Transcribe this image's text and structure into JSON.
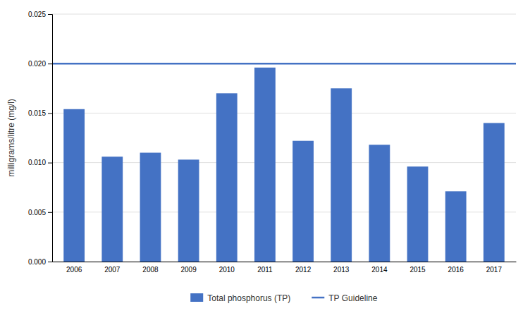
{
  "chart_data": {
    "type": "bar",
    "categories": [
      "2006",
      "2007",
      "2008",
      "2009",
      "2010",
      "2011",
      "2012",
      "2013",
      "2014",
      "2015",
      "2016",
      "2017"
    ],
    "values": [
      0.0154,
      0.0106,
      0.011,
      0.0103,
      0.017,
      0.0196,
      0.0122,
      0.0175,
      0.0118,
      0.0096,
      0.0071,
      0.014
    ],
    "name": "Total phosphorus (TP)",
    "color": "#4472C4",
    "reference_line": {
      "name": "TP Guideline",
      "value": 0.02,
      "color": "#4472C4"
    },
    "ylabel": "milligrams/litre (mg/l)",
    "ylim": [
      0,
      0.025
    ],
    "yticks": [
      {
        "value": 0,
        "label": "0.000"
      },
      0.005,
      {
        "value": 0.01,
        "label": "0.010"
      },
      0.015,
      {
        "value": 0.02,
        "label": "0.020"
      },
      0.025
    ],
    "grid": true,
    "legend": "bottom"
  }
}
